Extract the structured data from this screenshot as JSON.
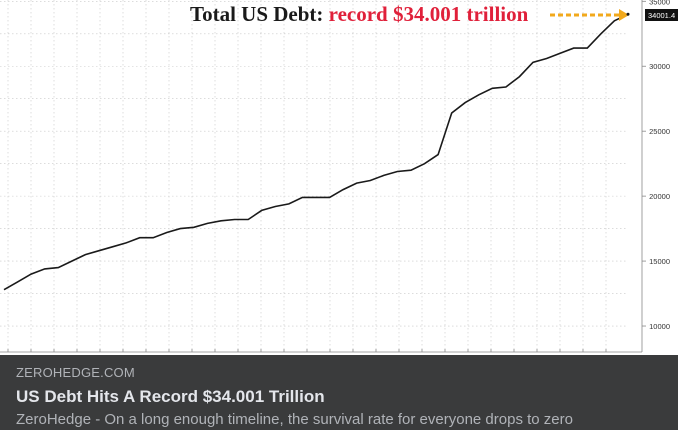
{
  "link_card": {
    "site": "ZEROHEDGE.COM",
    "headline": "US Debt Hits A Record $34.001 Trillion",
    "description": "ZeroHedge - On a long enough timeline, the survival rate for everyone drops to zero"
  },
  "colors": {
    "line": "#1a1a1a",
    "annotation_red": "#e0203a",
    "arrow": "#f2a91c",
    "caption_bg": "#3a3b3c"
  },
  "chart_data": {
    "type": "line",
    "title": "Total US Debt: ",
    "title_highlight": "record $34.001 trillion",
    "last_value_label": "34001.4",
    "yticks": [
      10000,
      15000,
      20000,
      25000,
      30000,
      35000
    ],
    "ylim": [
      8000,
      35100
    ],
    "grid": true,
    "series": [
      {
        "values": [
          12800,
          13400,
          14000,
          14400,
          14500,
          15000,
          15500,
          15800,
          16100,
          16400,
          16800,
          16800,
          17200,
          17500,
          17600,
          17900,
          18100,
          18200,
          18200,
          18900,
          19200,
          19400,
          19900,
          19900,
          19900,
          20500,
          21000,
          21200,
          21600,
          21900,
          22000,
          22500,
          23200,
          26400,
          27200,
          27800,
          28300,
          28400,
          29200,
          30300,
          30600,
          31000,
          31400,
          31400,
          32500,
          33500,
          34001.4
        ]
      }
    ]
  }
}
